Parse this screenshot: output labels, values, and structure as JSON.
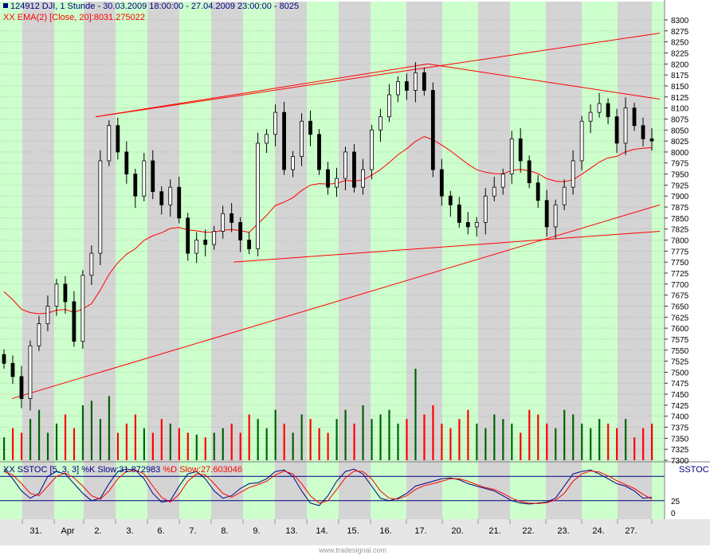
{
  "header": {
    "line1": "124912  DJI, 1 Stunde - 30.03.2009 18:00:00 - 27.04.2009 23:00:00 - 8025",
    "line2": "XX EMA(2) [Close, 20]:8031.275022"
  },
  "oscillator_label": {
    "k_part": "XX SSTOC [5, 3, 3] %K Slow:31.872983 ",
    "d_part": "%D Slow:27.603046"
  },
  "oscillator_name": "SSTOC",
  "credit": "www.tradesignal.com",
  "colors": {
    "up": "#006400",
    "down": "#ff0000",
    "shade_gray": "#d4d4d4",
    "shade_green": "#ccffcc",
    "ema": "#ff0000",
    "k": "#000080",
    "d": "#ff0000",
    "trend": "#ff0000"
  },
  "chart_data": [
    {
      "type": "candlestick",
      "title": "DJI, 1 Stunde",
      "x_labels": [
        "31.",
        "Apr",
        "2.",
        "3.",
        "6.",
        "7.",
        "8.",
        "9.",
        "13.",
        "14.",
        "15.",
        "16.",
        "17.",
        "20.",
        "21.",
        "22.",
        "23.",
        "24.",
        "27."
      ],
      "y_range": [
        7300,
        8300
      ],
      "y_ticks": [
        7300,
        7325,
        7350,
        7375,
        7400,
        7425,
        7450,
        7475,
        7500,
        7525,
        7550,
        7575,
        7600,
        7625,
        7650,
        7675,
        7700,
        7725,
        7750,
        7775,
        7800,
        7825,
        7850,
        7875,
        7900,
        7925,
        7950,
        7975,
        8000,
        8025,
        8050,
        8075,
        8100,
        8125,
        8150,
        8175,
        8200,
        8225,
        8250,
        8275,
        8300
      ],
      "close_path": [
        [
          0,
          7520
        ],
        [
          1,
          7490
        ],
        [
          2,
          7440
        ],
        [
          3,
          7560
        ],
        [
          4,
          7610
        ],
        [
          5,
          7650
        ],
        [
          6,
          7700
        ],
        [
          7,
          7660
        ],
        [
          8,
          7570
        ],
        [
          9,
          7720
        ],
        [
          10,
          7770
        ],
        [
          11,
          7980
        ],
        [
          12,
          8060
        ],
        [
          13,
          8000
        ],
        [
          14,
          7950
        ],
        [
          15,
          7900
        ],
        [
          16,
          7980
        ],
        [
          17,
          7910
        ],
        [
          18,
          7880
        ],
        [
          19,
          7920
        ],
        [
          20,
          7850
        ],
        [
          21,
          7770
        ],
        [
          22,
          7800
        ],
        [
          23,
          7790
        ],
        [
          24,
          7820
        ],
        [
          25,
          7860
        ],
        [
          26,
          7840
        ],
        [
          27,
          7800
        ],
        [
          28,
          7780
        ],
        [
          29,
          8020
        ],
        [
          30,
          8040
        ],
        [
          31,
          8090
        ],
        [
          32,
          7960
        ],
        [
          33,
          7990
        ],
        [
          34,
          8070
        ],
        [
          35,
          8040
        ],
        [
          36,
          7960
        ],
        [
          37,
          7920
        ],
        [
          38,
          7940
        ],
        [
          39,
          8000
        ],
        [
          40,
          7920
        ],
        [
          41,
          7960
        ],
        [
          42,
          8050
        ],
        [
          43,
          8080
        ],
        [
          44,
          8130
        ],
        [
          45,
          8160
        ],
        [
          46,
          8140
        ],
        [
          47,
          8180
        ],
        [
          48,
          8140
        ],
        [
          49,
          7960
        ],
        [
          50,
          7900
        ],
        [
          51,
          7880
        ],
        [
          52,
          7840
        ],
        [
          53,
          7830
        ],
        [
          54,
          7840
        ],
        [
          55,
          7900
        ],
        [
          56,
          7920
        ],
        [
          57,
          7950
        ],
        [
          58,
          8030
        ],
        [
          59,
          7980
        ],
        [
          60,
          7930
        ],
        [
          61,
          7890
        ],
        [
          62,
          7830
        ],
        [
          63,
          7880
        ],
        [
          64,
          7920
        ],
        [
          65,
          7980
        ],
        [
          66,
          8070
        ],
        [
          67,
          8090
        ],
        [
          68,
          8110
        ],
        [
          69,
          8080
        ],
        [
          70,
          8020
        ],
        [
          71,
          8100
        ],
        [
          72,
          8060
        ],
        [
          73,
          8030
        ],
        [
          74,
          8025
        ]
      ],
      "ema20_endpoints": {
        "start": 7700,
        "end": 8031.275022
      },
      "trend_lines": [
        {
          "from": [
            "31.",
            7440
          ],
          "to": [
            "27.",
            7880
          ]
        },
        {
          "from": [
            "2.",
            8080
          ],
          "to": [
            "17.",
            8200
          ]
        },
        {
          "from": [
            "2.",
            8080
          ],
          "to": [
            "27.",
            8270
          ]
        },
        {
          "from": [
            "17.",
            8200
          ],
          "to": [
            "27.",
            8120
          ]
        },
        {
          "from": [
            "8.",
            7750
          ],
          "to": [
            "27.",
            7820
          ]
        }
      ],
      "volume_path": [
        0.25,
        0.35,
        0.3,
        0.45,
        0.55,
        0.3,
        0.4,
        0.5,
        0.35,
        0.6,
        0.65,
        0.45,
        0.7,
        0.3,
        0.4,
        0.5,
        0.35,
        0.3,
        0.45,
        0.4,
        0.35,
        0.3,
        0.28,
        0.25,
        0.3,
        0.35,
        0.4,
        0.3,
        0.5,
        0.45,
        0.35,
        0.55,
        0.4,
        0.3,
        0.5,
        0.45,
        0.35,
        0.3,
        0.45,
        0.55,
        0.4,
        0.6,
        0.45,
        0.5,
        0.55,
        0.4,
        0.45,
        1.0,
        0.5,
        0.6,
        0.4,
        0.35,
        0.45,
        0.55,
        0.4,
        0.35,
        0.5,
        0.45,
        0.4,
        0.3,
        0.55,
        0.5,
        0.4,
        0.35,
        0.55,
        0.5,
        0.4,
        0.35,
        0.45,
        0.4,
        0.35,
        0.45,
        0.25,
        0.35,
        0.4
      ]
    },
    {
      "type": "line",
      "title": "XX SSTOC [5, 3, 3]",
      "y_range": [
        0,
        100
      ],
      "y_ticks": [
        0,
        25
      ],
      "reference_levels": [
        25,
        75
      ],
      "series": [
        {
          "name": "%K Slow",
          "last": 31.872983,
          "values": [
            90,
            70,
            45,
            30,
            40,
            75,
            85,
            80,
            60,
            40,
            25,
            30,
            60,
            85,
            90,
            88,
            70,
            40,
            22,
            25,
            55,
            80,
            85,
            70,
            45,
            30,
            35,
            50,
            60,
            62,
            70,
            85,
            88,
            75,
            45,
            20,
            15,
            35,
            65,
            85,
            90,
            80,
            55,
            30,
            25,
            30,
            40,
            55,
            60,
            65,
            70,
            72,
            68,
            60,
            55,
            50,
            45,
            35,
            25,
            20,
            18,
            20,
            22,
            30,
            55,
            80,
            85,
            88,
            80,
            70,
            60,
            55,
            45,
            30,
            32
          ]
        },
        {
          "name": "%D Slow",
          "last": 27.603046,
          "values": [
            85,
            78,
            60,
            40,
            35,
            55,
            75,
            82,
            72,
            55,
            35,
            28,
            45,
            70,
            85,
            88,
            80,
            55,
            32,
            22,
            38,
            65,
            80,
            78,
            60,
            40,
            32,
            42,
            52,
            58,
            65,
            78,
            86,
            80,
            60,
            35,
            20,
            25,
            48,
            72,
            86,
            85,
            70,
            45,
            30,
            28,
            35,
            48,
            56,
            60,
            65,
            70,
            70,
            65,
            58,
            52,
            48,
            40,
            30,
            23,
            20,
            19,
            21,
            26,
            40,
            65,
            80,
            86,
            84,
            76,
            66,
            58,
            50,
            38,
            28
          ]
        }
      ]
    }
  ]
}
